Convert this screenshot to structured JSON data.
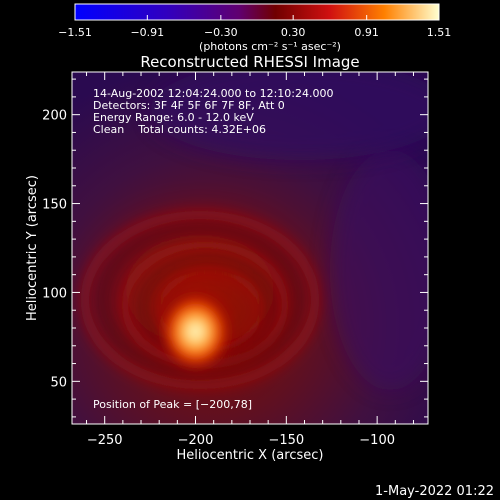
{
  "chart_data": {
    "type": "heatmap",
    "title": "Reconstructed RHESSI Image",
    "xlabel": "Heliocentric X (arcsec)",
    "ylabel": "Heliocentric Y (arcsec)",
    "xlim": [
      -268,
      -72
    ],
    "ylim": [
      26,
      224
    ],
    "xticks": [
      -250,
      -200,
      -150,
      -100
    ],
    "yticks": [
      50,
      100,
      150,
      200
    ],
    "xtick_labels": [
      "−250",
      "−200",
      "−150",
      "−100"
    ],
    "ytick_labels": [
      "50",
      "100",
      "150",
      "200"
    ],
    "colorbar": {
      "min": -1.51,
      "max": 1.51,
      "ticks": [
        -1.51,
        -0.91,
        -0.3,
        0.3,
        0.91,
        1.51
      ],
      "tick_labels": [
        "−1.51",
        "−0.91",
        "−0.30",
        "0.30",
        "0.91",
        "1.51"
      ],
      "units": "(photons cm⁻² s⁻¹ asec⁻²)"
    },
    "annotations": [
      "14-Aug-2002 12:04:24.000 to 12:10:24.000",
      "Detectors: 3F 4F 5F 6F 7F 8F, Att 0",
      "Energy Range: 6.0 - 12.0 keV",
      "Clean    Total counts: 4.32E+06"
    ],
    "peak_label": "Position of Peak = [−200,78]",
    "peak": {
      "x": -200,
      "y": 78
    }
  },
  "footer": {
    "timestamp": "1-May-2022 01:22"
  }
}
